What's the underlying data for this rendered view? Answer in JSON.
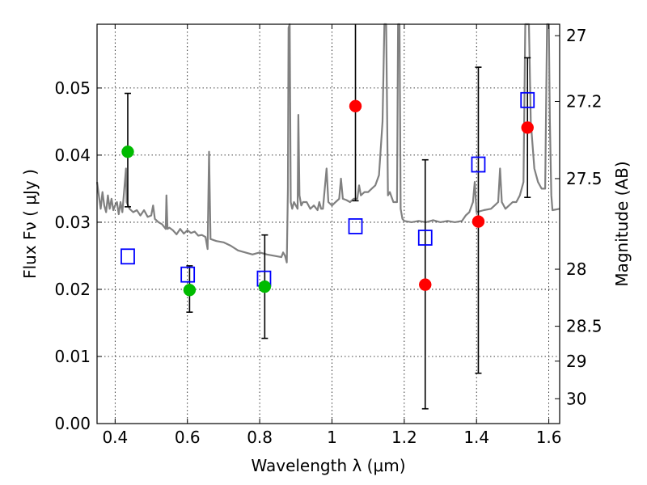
{
  "chart_data": {
    "type": "scatter",
    "title": "",
    "xlabel": "Wavelength  λ (μm)",
    "ylabel": "Flux  Fν  ( μJy )",
    "ylabel_right": "Magnitude (AB)",
    "xlim": [
      0.35,
      1.63
    ],
    "ylim": [
      0.0,
      0.0595
    ],
    "grid": true,
    "x_ticks": [
      0.4,
      0.6,
      0.8,
      1.0,
      1.2,
      1.4,
      1.6
    ],
    "x_tick_labels": [
      "0.4",
      "0.6",
      "0.8",
      "1",
      "1.2",
      "1.4",
      "1.6"
    ],
    "y_ticks": [
      0.0,
      0.01,
      0.02,
      0.03,
      0.04,
      0.05
    ],
    "y_tick_labels": [
      "0.00",
      "0.01",
      "0.02",
      "0.03",
      "0.04",
      "0.05"
    ],
    "right_ticks": [
      {
        "flux": 0.0578,
        "label": "27"
      },
      {
        "flux": 0.048,
        "label": "27.2"
      },
      {
        "flux": 0.0365,
        "label": "27.5"
      },
      {
        "flux": 0.023,
        "label": "28"
      },
      {
        "flux": 0.0145,
        "label": "28.5"
      },
      {
        "flux": 0.0093,
        "label": "29"
      },
      {
        "flux": 0.0037,
        "label": "30"
      }
    ],
    "series": [
      {
        "kind": "spectrum",
        "color": "#808080",
        "points": [
          [
            0.35,
            0.036
          ],
          [
            0.355,
            0.034
          ],
          [
            0.36,
            0.032
          ],
          [
            0.365,
            0.0345
          ],
          [
            0.37,
            0.0325
          ],
          [
            0.375,
            0.0315
          ],
          [
            0.38,
            0.034
          ],
          [
            0.385,
            0.032
          ],
          [
            0.39,
            0.0335
          ],
          [
            0.395,
            0.0318
          ],
          [
            0.4,
            0.0325
          ],
          [
            0.405,
            0.033
          ],
          [
            0.41,
            0.0312
          ],
          [
            0.415,
            0.033
          ],
          [
            0.42,
            0.0315
          ],
          [
            0.43,
            0.038
          ],
          [
            0.432,
            0.033
          ],
          [
            0.44,
            0.032
          ],
          [
            0.45,
            0.0315
          ],
          [
            0.46,
            0.0318
          ],
          [
            0.47,
            0.031
          ],
          [
            0.48,
            0.0318
          ],
          [
            0.49,
            0.0308
          ],
          [
            0.5,
            0.031
          ],
          [
            0.505,
            0.0325
          ],
          [
            0.51,
            0.0305
          ],
          [
            0.52,
            0.03
          ],
          [
            0.53,
            0.0297
          ],
          [
            0.54,
            0.029
          ],
          [
            0.542,
            0.034
          ],
          [
            0.545,
            0.029
          ],
          [
            0.55,
            0.0292
          ],
          [
            0.56,
            0.0288
          ],
          [
            0.57,
            0.0282
          ],
          [
            0.58,
            0.029
          ],
          [
            0.59,
            0.0283
          ],
          [
            0.6,
            0.0288
          ],
          [
            0.61,
            0.0284
          ],
          [
            0.62,
            0.0286
          ],
          [
            0.63,
            0.028
          ],
          [
            0.64,
            0.0281
          ],
          [
            0.65,
            0.0278
          ],
          [
            0.656,
            0.026
          ],
          [
            0.66,
            0.0405
          ],
          [
            0.664,
            0.0275
          ],
          [
            0.68,
            0.0272
          ],
          [
            0.7,
            0.027
          ],
          [
            0.72,
            0.0265
          ],
          [
            0.74,
            0.0258
          ],
          [
            0.76,
            0.0255
          ],
          [
            0.78,
            0.0252
          ],
          [
            0.8,
            0.0255
          ],
          [
            0.82,
            0.0252
          ],
          [
            0.84,
            0.025
          ],
          [
            0.86,
            0.0248
          ],
          [
            0.865,
            0.0255
          ],
          [
            0.87,
            0.025
          ],
          [
            0.875,
            0.024
          ],
          [
            0.878,
            0.035
          ],
          [
            0.88,
            0.059
          ],
          [
            0.883,
            0.06
          ],
          [
            0.886,
            0.033
          ],
          [
            0.89,
            0.032
          ],
          [
            0.895,
            0.033
          ],
          [
            0.9,
            0.0325
          ],
          [
            0.905,
            0.032
          ],
          [
            0.907,
            0.046
          ],
          [
            0.91,
            0.034
          ],
          [
            0.915,
            0.0325
          ],
          [
            0.92,
            0.033
          ],
          [
            0.93,
            0.033
          ],
          [
            0.94,
            0.032
          ],
          [
            0.95,
            0.0325
          ],
          [
            0.96,
            0.0318
          ],
          [
            0.965,
            0.033
          ],
          [
            0.97,
            0.032
          ],
          [
            0.975,
            0.032
          ],
          [
            0.985,
            0.038
          ],
          [
            0.99,
            0.033
          ],
          [
            1.0,
            0.0325
          ],
          [
            1.01,
            0.033
          ],
          [
            1.02,
            0.0335
          ],
          [
            1.025,
            0.0365
          ],
          [
            1.03,
            0.0335
          ],
          [
            1.04,
            0.0333
          ],
          [
            1.05,
            0.033
          ],
          [
            1.06,
            0.0335
          ],
          [
            1.07,
            0.0335
          ],
          [
            1.075,
            0.0355
          ],
          [
            1.08,
            0.034
          ],
          [
            1.09,
            0.0345
          ],
          [
            1.1,
            0.0345
          ],
          [
            1.11,
            0.035
          ],
          [
            1.12,
            0.0355
          ],
          [
            1.13,
            0.037
          ],
          [
            1.14,
            0.045
          ],
          [
            1.145,
            0.06
          ],
          [
            1.15,
            0.06
          ],
          [
            1.155,
            0.034
          ],
          [
            1.16,
            0.0345
          ],
          [
            1.17,
            0.033
          ],
          [
            1.18,
            0.033
          ],
          [
            1.183,
            0.06
          ],
          [
            1.187,
            0.06
          ],
          [
            1.19,
            0.032
          ],
          [
            1.195,
            0.0305
          ],
          [
            1.2,
            0.0302
          ],
          [
            1.22,
            0.03
          ],
          [
            1.24,
            0.0302
          ],
          [
            1.26,
            0.03
          ],
          [
            1.28,
            0.0303
          ],
          [
            1.3,
            0.03
          ],
          [
            1.32,
            0.0302
          ],
          [
            1.34,
            0.03
          ],
          [
            1.36,
            0.0302
          ],
          [
            1.37,
            0.031
          ],
          [
            1.38,
            0.0315
          ],
          [
            1.39,
            0.033
          ],
          [
            1.395,
            0.036
          ],
          [
            1.4,
            0.0315
          ],
          [
            1.42,
            0.0318
          ],
          [
            1.44,
            0.032
          ],
          [
            1.45,
            0.0325
          ],
          [
            1.46,
            0.033
          ],
          [
            1.465,
            0.038
          ],
          [
            1.47,
            0.033
          ],
          [
            1.48,
            0.032
          ],
          [
            1.49,
            0.0325
          ],
          [
            1.5,
            0.033
          ],
          [
            1.51,
            0.033
          ],
          [
            1.52,
            0.034
          ],
          [
            1.53,
            0.036
          ],
          [
            1.535,
            0.06
          ],
          [
            1.545,
            0.06
          ],
          [
            1.55,
            0.045
          ],
          [
            1.56,
            0.038
          ],
          [
            1.57,
            0.036
          ],
          [
            1.58,
            0.035
          ],
          [
            1.59,
            0.035
          ],
          [
            1.595,
            0.06
          ],
          [
            1.6,
            0.06
          ],
          [
            1.603,
            0.045
          ],
          [
            1.607,
            0.034
          ],
          [
            1.61,
            0.0318
          ],
          [
            1.63,
            0.032
          ]
        ]
      },
      {
        "kind": "model_boxes",
        "color": "#0000ff",
        "points": [
          [
            0.435,
            0.0249
          ],
          [
            0.601,
            0.0222
          ],
          [
            0.812,
            0.0216
          ],
          [
            1.065,
            0.0294
          ],
          [
            1.258,
            0.0277
          ],
          [
            1.405,
            0.0386
          ],
          [
            1.541,
            0.0482
          ]
        ]
      },
      {
        "kind": "points_green",
        "color": "#00bb00",
        "points": [
          {
            "x": 0.435,
            "y": 0.0405,
            "yerr_low": 0.0082,
            "yerr_high": 0.0087
          },
          {
            "x": 0.606,
            "y": 0.0199,
            "yerr_low": 0.0033,
            "yerr_high": 0.0036
          },
          {
            "x": 0.814,
            "y": 0.0204,
            "yerr_low": 0.0077,
            "yerr_high": 0.0077
          }
        ]
      },
      {
        "kind": "points_red",
        "color": "#ff0000",
        "points": [
          {
            "x": 1.065,
            "y": 0.0473,
            "yerr_low": 0.0141,
            "yerr_high": 0.0122
          },
          {
            "x": 1.258,
            "y": 0.0207,
            "yerr_low": 0.0185,
            "yerr_high": 0.0186
          },
          {
            "x": 1.405,
            "y": 0.0301,
            "yerr_low": 0.0226,
            "yerr_high": 0.023
          },
          {
            "x": 1.541,
            "y": 0.0441,
            "yerr_low": 0.0104,
            "yerr_high": 0.0104
          }
        ]
      }
    ]
  }
}
